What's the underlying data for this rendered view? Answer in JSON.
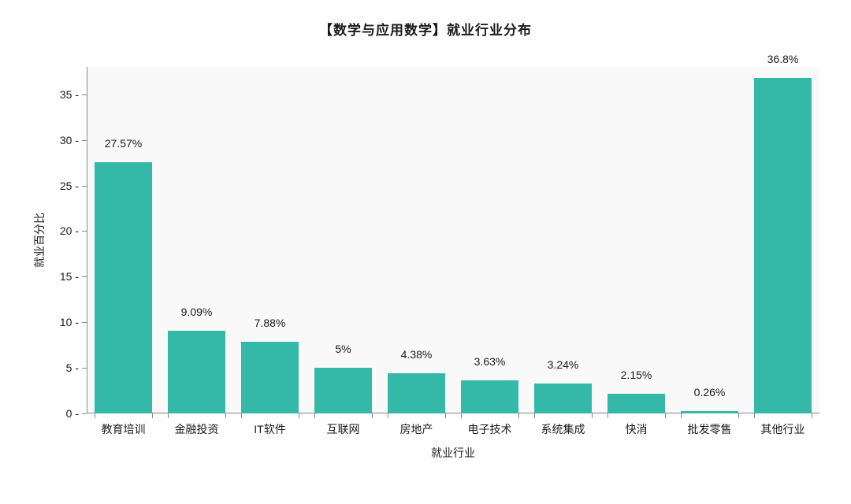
{
  "chart": {
    "type": "bar",
    "title": "【数学与应用数学】就业行业分布",
    "title_fontsize": 17,
    "xlabel": "就业行业",
    "ylabel": "就业百分比",
    "label_fontsize": 14,
    "background_color": "#ffffff",
    "plot_background_color": "#f9f9f9",
    "axis_color": "#888888",
    "text_color": "#1a1a1a",
    "bar_color": "#34b8a8",
    "bar_width_ratio": 0.78,
    "categories": [
      "教育培训",
      "金融投资",
      "IT软件",
      "互联网",
      "房地产",
      "电子技术",
      "系统集成",
      "快消",
      "批发零售",
      "其他行业"
    ],
    "values": [
      27.57,
      9.09,
      7.88,
      5,
      4.38,
      3.63,
      3.24,
      2.15,
      0.26,
      36.8
    ],
    "value_labels": [
      "27.57%",
      "9.09%",
      "7.88%",
      "5%",
      "4.38%",
      "3.63%",
      "3.24%",
      "2.15%",
      "0.26%",
      "36.8%"
    ],
    "ylim": [
      0,
      38
    ],
    "yticks": [
      0,
      5,
      10,
      15,
      20,
      25,
      30,
      35
    ],
    "tick_fontsize": 14,
    "value_label_fontsize": 14
  }
}
